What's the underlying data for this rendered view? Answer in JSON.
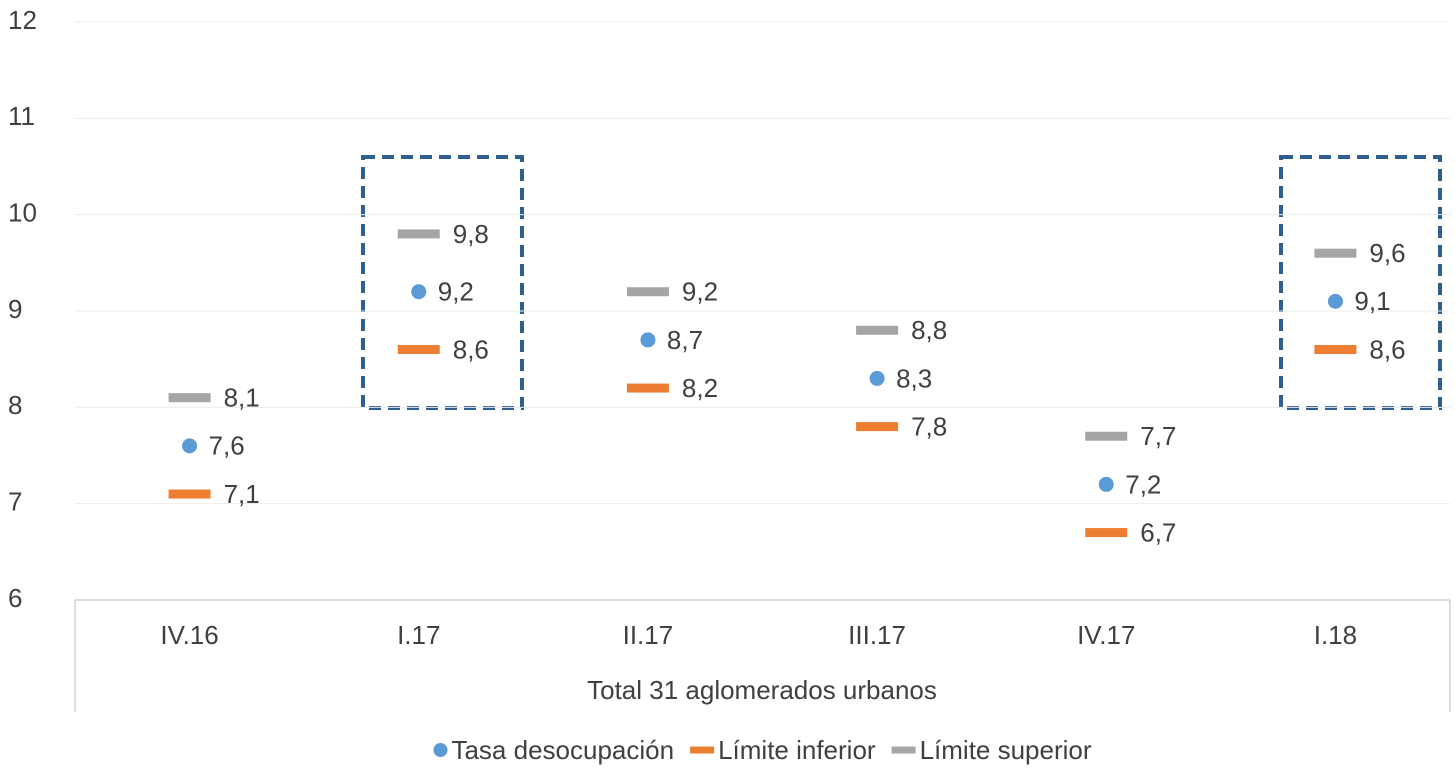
{
  "chart_data": {
    "type": "dot_range",
    "categories": [
      "IV.16",
      "I.17",
      "II.17",
      "III.17",
      "IV.17",
      "I.18"
    ],
    "x_label": "Total 31 aglomerados urbanos",
    "ylim": [
      6,
      12
    ],
    "yticks": [
      6,
      7,
      8,
      9,
      10,
      11,
      12
    ],
    "grid": true,
    "legend": "bottom",
    "series": [
      {
        "name": "Tasa desocupación",
        "color": "#5b9bd5",
        "marker": "circle",
        "values": [
          7.6,
          9.2,
          8.7,
          8.3,
          7.2,
          9.1
        ],
        "value_labels": [
          "7,6",
          "9,2",
          "8,7",
          "8,3",
          "7,2",
          "9,1"
        ]
      },
      {
        "name": "Límite inferior",
        "color": "#ed7d31",
        "marker": "dash",
        "values": [
          7.1,
          8.6,
          8.2,
          7.8,
          6.7,
          8.6
        ],
        "value_labels": [
          "7,1",
          "8,6",
          "8,2",
          "7,8",
          "6,7",
          "8,6"
        ]
      },
      {
        "name": "Límite superior",
        "color": "#a5a5a5",
        "marker": "dash",
        "values": [
          8.1,
          9.8,
          9.2,
          8.8,
          7.7,
          9.6
        ],
        "value_labels": [
          "8,1",
          "9,8",
          "9,2",
          "8,8",
          "7,7",
          "9,6"
        ]
      }
    ]
  }
}
